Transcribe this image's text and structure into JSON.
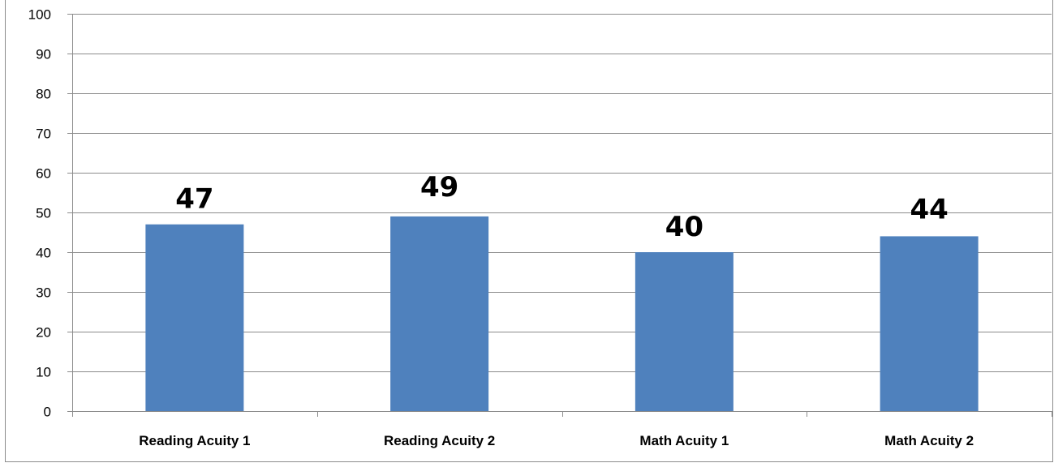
{
  "chart_data": {
    "type": "bar",
    "title": "",
    "xlabel": "",
    "ylabel": "",
    "categories": [
      "Reading Acuity 1",
      "Reading Acuity 2",
      "Math Acuity 1",
      "Math Acuity 2"
    ],
    "values": [
      47,
      49,
      40,
      44
    ],
    "data_labels": [
      "47",
      "49",
      "40",
      "44"
    ],
    "label_offsets": [
      0,
      5,
      0,
      2
    ],
    "ylim": [
      0,
      100
    ],
    "yticks": [
      0,
      10,
      20,
      30,
      40,
      50,
      60,
      70,
      80,
      90,
      100
    ],
    "ytick_labels": [
      "0",
      "10",
      "20",
      "30",
      "40",
      "50",
      "60",
      "70",
      "80",
      "90",
      "100"
    ],
    "grid": true,
    "legend": "none",
    "colors": {
      "bar": "#4f81bd",
      "grid": "#8c8c8c",
      "axis": "#8c8c8c"
    }
  }
}
